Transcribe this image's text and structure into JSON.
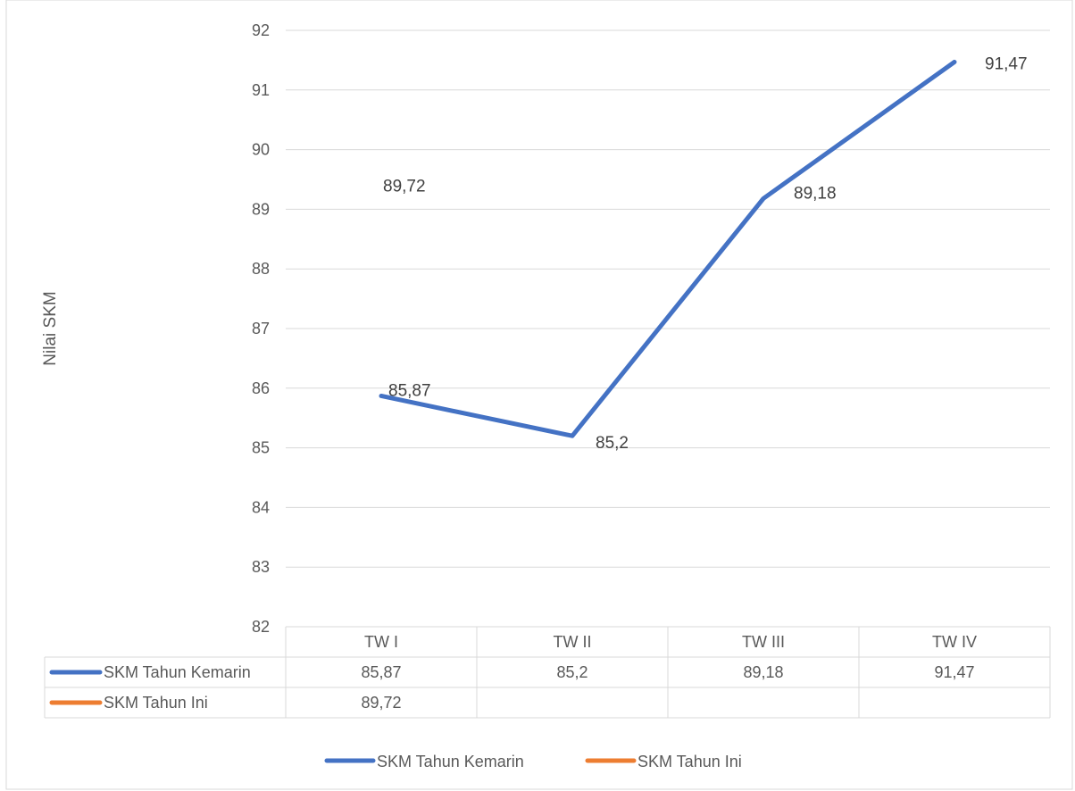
{
  "chart_data": {
    "type": "line",
    "title": "",
    "xlabel": "",
    "ylabel": "Nilai SKM",
    "ylim": [
      82,
      92
    ],
    "yticks": [
      82,
      83,
      84,
      85,
      86,
      87,
      88,
      89,
      90,
      91,
      92
    ],
    "categories": [
      "TW I",
      "TW II",
      "TW III",
      "TW IV"
    ],
    "grid": true,
    "legend_position": "bottom",
    "series": [
      {
        "name": "SKM Tahun Kemarin",
        "color": "#4472C4",
        "values": [
          85.87,
          85.2,
          89.18,
          91.47
        ],
        "labels": [
          "85,87",
          "85,2",
          "89,18",
          "91,47"
        ]
      },
      {
        "name": "SKM Tahun Ini",
        "color": "#ED7D31",
        "values": [
          89.72,
          null,
          null,
          null
        ],
        "labels": [
          "89,72",
          "",
          "",
          ""
        ]
      }
    ]
  }
}
